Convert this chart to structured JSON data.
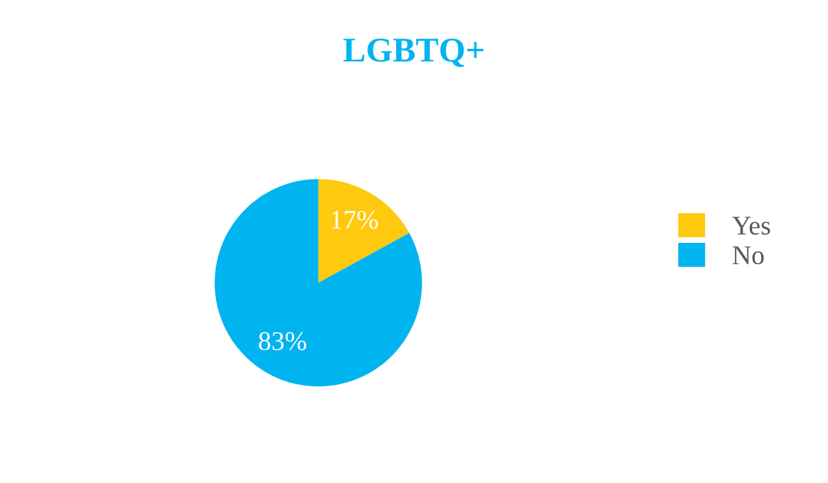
{
  "chart_data": {
    "type": "pie",
    "title": "LGBTQ+",
    "categories": [
      "Yes",
      "No"
    ],
    "values": [
      17,
      83
    ],
    "colors": [
      "#ffc90e",
      "#00b4ef"
    ],
    "value_labels": [
      "17%",
      "83%"
    ],
    "legend": "right"
  }
}
